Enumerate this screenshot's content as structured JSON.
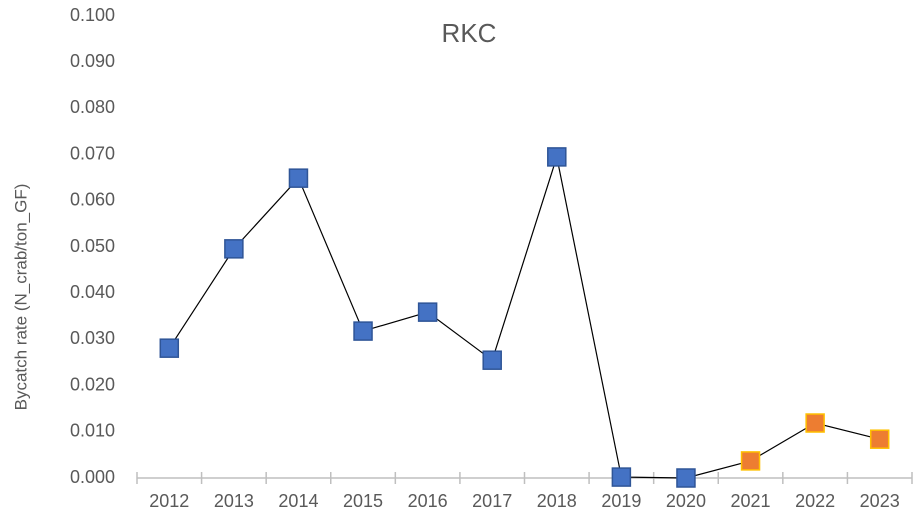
{
  "chart_data": {
    "type": "line",
    "title": "RKC",
    "y_label": "Bycatch rate (N_crab/ton_GF)",
    "categories": [
      "2012",
      "2013",
      "2014",
      "2015",
      "2016",
      "2017",
      "2018",
      "2019",
      "2020",
      "2021",
      "2022",
      "2023"
    ],
    "series": [
      {
        "name": "RKC",
        "color": "#000000",
        "values": [
          0.0281,
          0.0496,
          0.0649,
          0.0318,
          0.0359,
          0.0255,
          0.0695,
          0.0002,
          0.0,
          0.0037,
          0.0119,
          0.0084
        ],
        "marker_colors": [
          "#4472c4",
          "#4472c4",
          "#4472c4",
          "#4472c4",
          "#4472c4",
          "#4472c4",
          "#4472c4",
          "#4472c4",
          "#4472c4",
          "#ed7d31",
          "#ed7d31",
          "#ed7d31"
        ],
        "marker_edge_colors": [
          "#2f5597",
          "#2f5597",
          "#2f5597",
          "#2f5597",
          "#2f5597",
          "#2f5597",
          "#2f5597",
          "#2f5597",
          "#2f5597",
          "#ffc000",
          "#ffc000",
          "#ffc000"
        ]
      }
    ],
    "ylim": [
      0,
      0.1
    ],
    "yticks": [
      {
        "value": 0,
        "label": "0.000"
      },
      {
        "value": 0.01,
        "label": "0.010"
      },
      {
        "value": 0.02,
        "label": "0.020"
      },
      {
        "value": 0.03,
        "label": "0.030"
      },
      {
        "value": 0.04,
        "label": "0.040"
      },
      {
        "value": 0.05,
        "label": "0.050"
      },
      {
        "value": 0.06,
        "label": "0.060"
      },
      {
        "value": 0.07,
        "label": "0.070"
      },
      {
        "value": 0.08,
        "label": "0.080"
      },
      {
        "value": 0.09,
        "label": "0.090"
      },
      {
        "value": 0.1,
        "label": "0.100"
      }
    ],
    "grid": false
  }
}
